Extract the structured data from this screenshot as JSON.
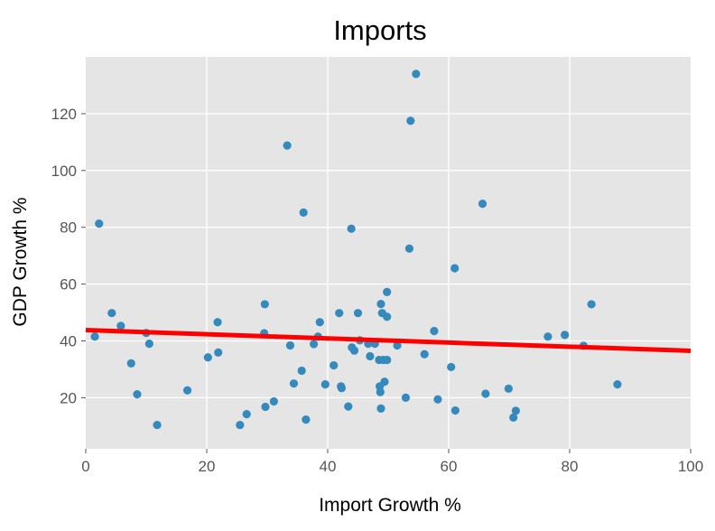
{
  "chart_data": {
    "type": "scatter",
    "title": "Imports",
    "xlabel": "Import Growth %",
    "ylabel": "GDP Growth %",
    "xlim": [
      0,
      100
    ],
    "ylim": [
      2,
      140
    ],
    "xticks": [
      0,
      20,
      40,
      60,
      80,
      100
    ],
    "yticks": [
      20,
      40,
      60,
      80,
      100,
      120
    ],
    "grid": true,
    "background": "#e5e5e5",
    "grid_color": "#ffffff",
    "point_color": "#348abd",
    "fit_line_color": "#ff0000",
    "points": [
      [
        1.5,
        41.5
      ],
      [
        2.2,
        81.3
      ],
      [
        4.3,
        49.8
      ],
      [
        5.8,
        45.3
      ],
      [
        7.5,
        32.1
      ],
      [
        8.5,
        21.2
      ],
      [
        10.0,
        42.8
      ],
      [
        10.5,
        39.0
      ],
      [
        11.8,
        10.4
      ],
      [
        16.8,
        22.6
      ],
      [
        20.2,
        34.2
      ],
      [
        21.8,
        46.6
      ],
      [
        21.9,
        35.9
      ],
      [
        25.5,
        10.4
      ],
      [
        26.6,
        14.2
      ],
      [
        29.5,
        42.7
      ],
      [
        29.6,
        52.9
      ],
      [
        29.7,
        16.8
      ],
      [
        31.1,
        18.7
      ],
      [
        33.3,
        108.8
      ],
      [
        33.8,
        38.4
      ],
      [
        34.4,
        25.0
      ],
      [
        35.7,
        29.5
      ],
      [
        36.0,
        85.2
      ],
      [
        36.4,
        12.3
      ],
      [
        37.7,
        38.9
      ],
      [
        38.4,
        41.5
      ],
      [
        38.7,
        46.6
      ],
      [
        39.6,
        24.7
      ],
      [
        41.0,
        31.4
      ],
      [
        41.9,
        49.8
      ],
      [
        42.2,
        24.0
      ],
      [
        42.3,
        23.4
      ],
      [
        43.4,
        16.9
      ],
      [
        43.9,
        79.5
      ],
      [
        44.0,
        37.7
      ],
      [
        44.4,
        36.6
      ],
      [
        45.0,
        49.8
      ],
      [
        45.3,
        40.2
      ],
      [
        46.7,
        39.0
      ],
      [
        47.0,
        34.6
      ],
      [
        47.8,
        39.0
      ],
      [
        48.5,
        33.3
      ],
      [
        48.6,
        24.0
      ],
      [
        48.7,
        22.0
      ],
      [
        48.8,
        53.0
      ],
      [
        48.8,
        16.2
      ],
      [
        49.0,
        49.8
      ],
      [
        49.2,
        33.3
      ],
      [
        49.4,
        25.6
      ],
      [
        49.8,
        57.2
      ],
      [
        49.8,
        33.3
      ],
      [
        49.8,
        48.5
      ],
      [
        51.5,
        38.4
      ],
      [
        52.9,
        20.0
      ],
      [
        53.5,
        72.5
      ],
      [
        53.7,
        117.5
      ],
      [
        54.6,
        134.0
      ],
      [
        56.0,
        35.3
      ],
      [
        57.6,
        43.5
      ],
      [
        58.2,
        19.4
      ],
      [
        60.4,
        30.8
      ],
      [
        61.0,
        65.6
      ],
      [
        61.1,
        15.5
      ],
      [
        65.6,
        88.3
      ],
      [
        66.1,
        21.4
      ],
      [
        69.9,
        23.2
      ],
      [
        70.7,
        13.0
      ],
      [
        71.1,
        15.4
      ],
      [
        76.4,
        41.5
      ],
      [
        79.2,
        42.1
      ],
      [
        82.3,
        38.3
      ],
      [
        83.6,
        52.9
      ],
      [
        87.9,
        24.7
      ]
    ],
    "fit_line": {
      "x": [
        0,
        100
      ],
      "y": [
        43.8,
        36.5
      ]
    }
  }
}
